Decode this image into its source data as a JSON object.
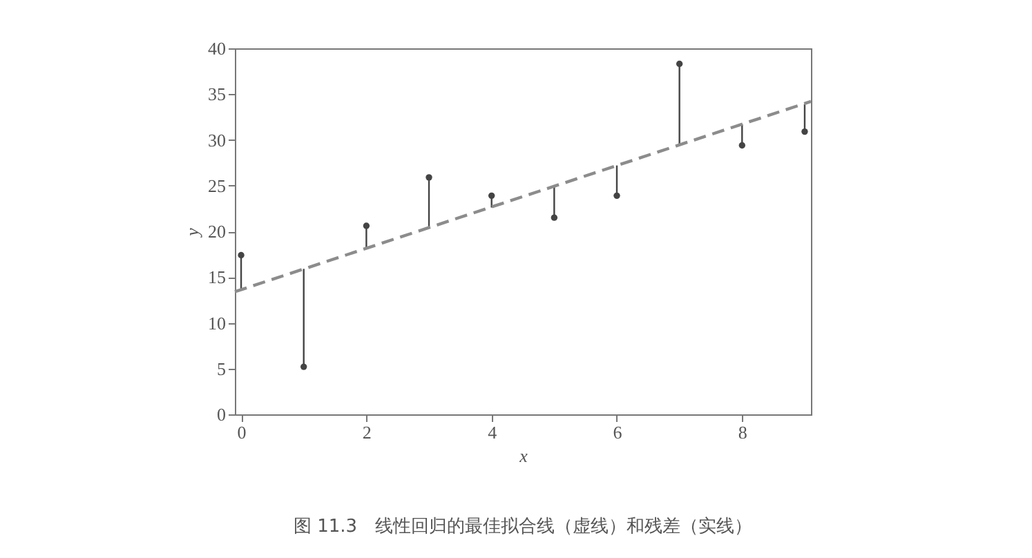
{
  "chart_data": {
    "type": "scatter",
    "title": "图 11.3　线性回归的最佳拟合线（虚线）和残差（实线）",
    "xlabel": "x",
    "ylabel": "y",
    "xlim": [
      -0.1,
      9.1
    ],
    "xticks": [
      0,
      2,
      4,
      6,
      8
    ],
    "ylim": [
      0,
      40
    ],
    "yticks": [
      0,
      5,
      10,
      15,
      20,
      25,
      30,
      35,
      40
    ],
    "grid": false,
    "series": [
      {
        "type": "scatter",
        "color": "#444444",
        "marker": "circle",
        "x": [
          0,
          1,
          2,
          3,
          4,
          5,
          6,
          7,
          8,
          9
        ],
        "values": [
          17.4,
          5.2,
          20.6,
          25.9,
          23.9,
          21.5,
          23.9,
          38.3,
          29.4,
          30.9
        ],
        "errors": [
          [
            13.6,
            17.4
          ],
          [
            5.2,
            15.9
          ],
          [
            18.1,
            20.6
          ],
          [
            20.4,
            25.9
          ],
          [
            22.6,
            23.9
          ],
          [
            21.5,
            24.9
          ],
          [
            23.9,
            27.2
          ],
          [
            29.4,
            38.3
          ],
          [
            29.4,
            31.7
          ],
          [
            30.9,
            33.9
          ]
        ]
      },
      {
        "type": "line",
        "color": "#8c8c8c",
        "line_style": "dashed",
        "marker": "none",
        "x": [
          -0.1,
          9.1
        ],
        "values": [
          13.4,
          34.2
        ]
      }
    ]
  }
}
